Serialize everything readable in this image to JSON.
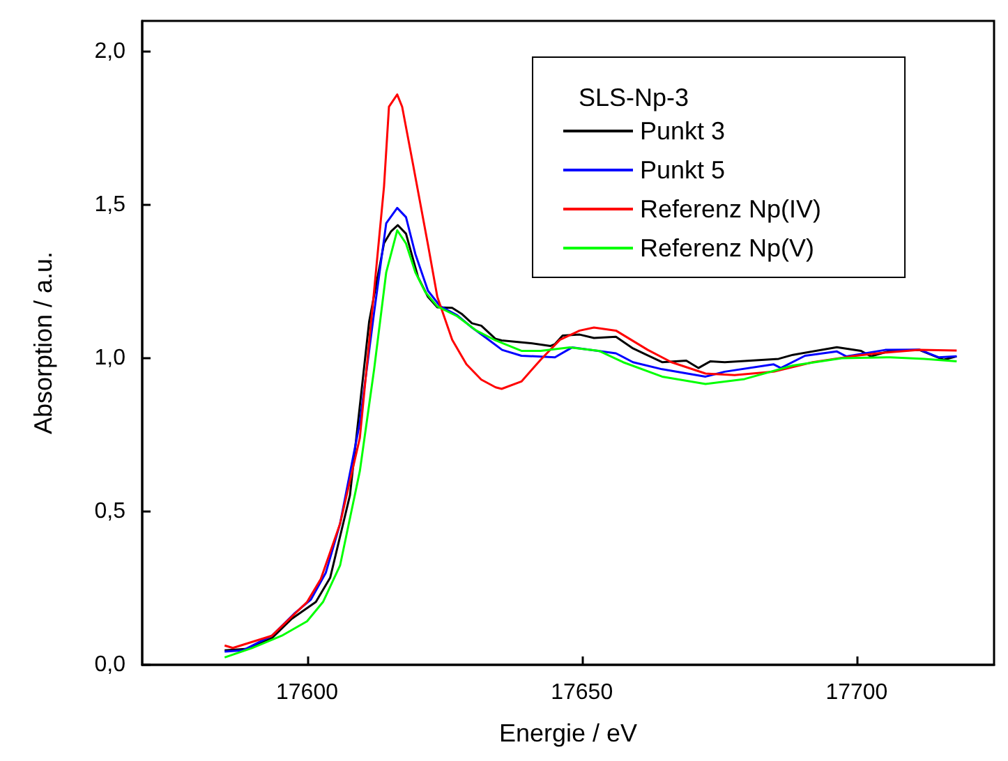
{
  "chart_data": {
    "type": "line",
    "xlabel": "Energie / eV",
    "ylabel": "Absorption / a.u.",
    "legend_title": "SLS-Np-3",
    "legend": "top right",
    "grid": false,
    "marker": "none",
    "line_style": "solid",
    "xlim": [
      17570,
      17725
    ],
    "xticks": [
      17600,
      17650,
      17700
    ],
    "ylim": [
      0,
      2.1
    ],
    "yticks": [
      {
        "value": 0,
        "label": "0,0"
      },
      {
        "value": 0.5,
        "label": "0,5"
      },
      {
        "value": 1,
        "label": "1,0"
      },
      {
        "value": 1.5,
        "label": "1,5"
      },
      {
        "value": 2,
        "label": "2,0"
      }
    ],
    "series": [
      {
        "name": "Punkt 3",
        "color": "#000000",
        "x": [
          17585,
          17589.2,
          17593.6,
          17597.2,
          17601.6,
          17604.2,
          17607.8,
          17611.3,
          17614,
          17615.3,
          17616.5,
          17618,
          17620.2,
          17622,
          17623.7,
          17626.4,
          17628.1,
          17630,
          17631.7,
          17634.3,
          17635.4,
          17640.7,
          17644.3,
          17645.1,
          17646.5,
          17649.6,
          17652.2,
          17656.2,
          17659.3,
          17664.6,
          17669,
          17671.2,
          17673.4,
          17676,
          17685.8,
          17688.4,
          17696.4,
          17700.8,
          17702.6,
          17706.1,
          17711.4,
          17715.8,
          17718.2
        ],
        "values": [
          0.047,
          0.052,
          0.087,
          0.15,
          0.205,
          0.284,
          0.553,
          1.12,
          1.375,
          1.414,
          1.434,
          1.406,
          1.264,
          1.2,
          1.166,
          1.164,
          1.145,
          1.114,
          1.106,
          1.063,
          1.058,
          1.049,
          1.04,
          1.046,
          1.074,
          1.077,
          1.066,
          1.07,
          1.032,
          0.987,
          0.992,
          0.968,
          0.99,
          0.987,
          0.998,
          1.011,
          1.036,
          1.024,
          1.006,
          1.024,
          1.027,
          0.995,
          1.006
        ]
      },
      {
        "name": "Punkt 5",
        "color": "#0000ff",
        "x": [
          17585,
          17588.3,
          17593.6,
          17597.6,
          17600.7,
          17603.4,
          17606,
          17609.6,
          17612.2,
          17614.4,
          17616.4,
          17618,
          17619.7,
          17622,
          17624.2,
          17627.3,
          17630,
          17632.6,
          17635.5,
          17639,
          17645.1,
          17648.2,
          17656.2,
          17659.3,
          17664.6,
          17672.5,
          17676,
          17684.9,
          17686.2,
          17690.6,
          17696.4,
          17698.1,
          17705.2,
          17711.4,
          17714.9,
          17718.2
        ],
        "values": [
          0.043,
          0.047,
          0.095,
          0.166,
          0.213,
          0.3,
          0.46,
          0.79,
          1.15,
          1.44,
          1.49,
          1.46,
          1.34,
          1.22,
          1.17,
          1.14,
          1.1,
          1.066,
          1.027,
          1.008,
          1.003,
          1.035,
          1.016,
          0.987,
          0.964,
          0.94,
          0.956,
          0.98,
          0.968,
          1.008,
          1.022,
          1.006,
          1.027,
          1.028,
          1.003,
          1.006
        ]
      },
      {
        "name": "Referenz Np(IV)",
        "color": "#ff0000",
        "x": [
          17585,
          17586.5,
          17593.6,
          17600,
          17602.5,
          17606,
          17609.6,
          17612.2,
          17614,
          17614.9,
          17616.4,
          17617.3,
          17619.3,
          17622,
          17623.7,
          17626.4,
          17629,
          17631.7,
          17634.3,
          17635.4,
          17639,
          17642.5,
          17646,
          17649.6,
          17652.2,
          17656.2,
          17662,
          17666.3,
          17672.5,
          17677.8,
          17684.9,
          17692,
          17699,
          17704.3,
          17711.4,
          17718.2
        ],
        "values": [
          0.063,
          0.055,
          0.095,
          0.205,
          0.28,
          0.46,
          0.74,
          1.22,
          1.56,
          1.82,
          1.86,
          1.82,
          1.63,
          1.37,
          1.2,
          1.06,
          0.98,
          0.93,
          0.905,
          0.9,
          0.924,
          0.995,
          1.06,
          1.09,
          1.1,
          1.09,
          1.027,
          0.987,
          0.95,
          0.945,
          0.956,
          0.987,
          1.006,
          1.017,
          1.027,
          1.025
        ]
      },
      {
        "name": "Referenz Np(V)",
        "color": "#00ff00",
        "x": [
          17585,
          17590,
          17595.4,
          17600,
          17602.9,
          17606,
          17609.6,
          17612.2,
          17614.4,
          17616.4,
          17618,
          17619.7,
          17621.5,
          17623.7,
          17627.3,
          17630.8,
          17634.3,
          17639,
          17642.5,
          17647.8,
          17653.1,
          17657.5,
          17664.6,
          17672.5,
          17679.6,
          17688.4,
          17697.3,
          17706.1,
          17712.3,
          17718.2
        ],
        "values": [
          0.024,
          0.055,
          0.095,
          0.142,
          0.205,
          0.324,
          0.632,
          0.964,
          1.28,
          1.417,
          1.374,
          1.28,
          1.216,
          1.169,
          1.137,
          1.09,
          1.058,
          1.024,
          1.024,
          1.035,
          1.024,
          0.987,
          0.94,
          0.916,
          0.932,
          0.976,
          1,
          1.003,
          0.998,
          0.99
        ]
      }
    ]
  }
}
